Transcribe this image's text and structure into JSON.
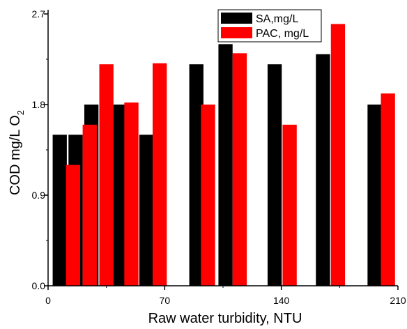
{
  "chart_data": {
    "type": "bar",
    "xlabel": "Raw water turbidity, NTU",
    "ylabel": "COD mg/L O",
    "ylabel_subscript": "2",
    "xlim": [
      0,
      210
    ],
    "ylim": [
      0,
      2.7
    ],
    "xticks": [
      "0",
      "70",
      "140",
      "210"
    ],
    "yticks": [
      "0.0",
      "0.9",
      "1.8",
      "2.7"
    ],
    "legend_position": "top-right",
    "grid": false,
    "bar_width": 8.5,
    "series": [
      {
        "name": "SA,mg/L",
        "color": "#000000",
        "points": [
          {
            "x": 7,
            "y": 1.5
          },
          {
            "x": 16.5,
            "y": 1.5
          },
          {
            "x": 26,
            "y": 1.8
          },
          {
            "x": 43,
            "y": 1.8
          },
          {
            "x": 59,
            "y": 1.5
          },
          {
            "x": 89,
            "y": 2.2
          },
          {
            "x": 106.5,
            "y": 2.4
          },
          {
            "x": 136,
            "y": 2.2
          },
          {
            "x": 165,
            "y": 2.3
          },
          {
            "x": 196,
            "y": 1.8
          }
        ]
      },
      {
        "name": "PAC, mg/L",
        "color": "#ff0000",
        "points": [
          {
            "x": 15,
            "y": 1.2
          },
          {
            "x": 25,
            "y": 1.6
          },
          {
            "x": 35,
            "y": 2.2
          },
          {
            "x": 50,
            "y": 1.82
          },
          {
            "x": 67,
            "y": 2.21
          },
          {
            "x": 96,
            "y": 1.8
          },
          {
            "x": 115,
            "y": 2.31
          },
          {
            "x": 145,
            "y": 1.6
          },
          {
            "x": 174,
            "y": 2.6
          },
          {
            "x": 204,
            "y": 1.91
          }
        ]
      }
    ]
  }
}
